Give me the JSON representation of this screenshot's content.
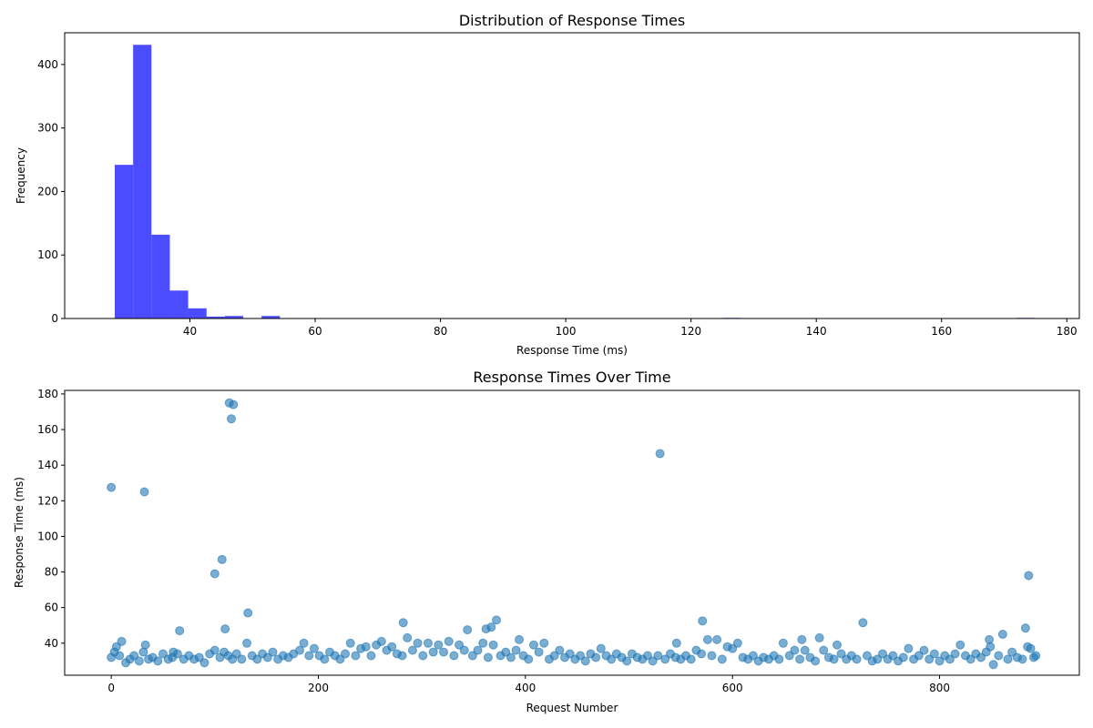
{
  "chart_data": [
    {
      "type": "bar",
      "title": "Distribution of Response Times",
      "xlabel": "Response Time (ms)",
      "ylabel": "Frequency",
      "xlim": [
        20,
        182
      ],
      "ylim": [
        0,
        450
      ],
      "xticks": [
        40,
        60,
        80,
        100,
        120,
        140,
        160,
        180
      ],
      "yticks": [
        0,
        100,
        200,
        300,
        400
      ],
      "grid": false,
      "color": "#0000ff",
      "bin_width": 2.93,
      "bins": [
        {
          "x0": 28.0,
          "x1": 30.93,
          "count": 242
        },
        {
          "x0": 30.93,
          "x1": 33.86,
          "count": 431
        },
        {
          "x0": 33.86,
          "x1": 36.79,
          "count": 132
        },
        {
          "x0": 36.79,
          "x1": 39.72,
          "count": 44
        },
        {
          "x0": 39.72,
          "x1": 42.65,
          "count": 16
        },
        {
          "x0": 42.65,
          "x1": 45.58,
          "count": 3
        },
        {
          "x0": 45.58,
          "x1": 48.51,
          "count": 4
        },
        {
          "x0": 48.51,
          "x1": 51.44,
          "count": 0
        },
        {
          "x0": 51.44,
          "x1": 54.37,
          "count": 4
        },
        {
          "x0": 125.0,
          "x1": 127.93,
          "count": 1
        },
        {
          "x0": 172.0,
          "x1": 174.93,
          "count": 1
        }
      ]
    },
    {
      "type": "scatter",
      "title": "Response Times Over Time",
      "xlabel": "Request Number",
      "ylabel": "Response Time (ms)",
      "xlim": [
        -45,
        935
      ],
      "ylim": [
        22,
        182
      ],
      "xticks": [
        0,
        200,
        400,
        600,
        800
      ],
      "yticks": [
        40,
        60,
        80,
        100,
        120,
        140,
        160,
        180
      ],
      "grid": false,
      "color": "#1f77b4",
      "points": [
        [
          0,
          127.5
        ],
        [
          32,
          125
        ],
        [
          100,
          79
        ],
        [
          107,
          87
        ],
        [
          110,
          48
        ],
        [
          114,
          175
        ],
        [
          116,
          166
        ],
        [
          118,
          174
        ],
        [
          132,
          57
        ],
        [
          131,
          40
        ],
        [
          66,
          47
        ],
        [
          10,
          41
        ],
        [
          5,
          38
        ],
        [
          33,
          39
        ],
        [
          60,
          35
        ],
        [
          282,
          51.5
        ],
        [
          286,
          43
        ],
        [
          344,
          47.5
        ],
        [
          362,
          48
        ],
        [
          367,
          49
        ],
        [
          372,
          53
        ],
        [
          394,
          42
        ],
        [
          231,
          40
        ],
        [
          530,
          146.5
        ],
        [
          571,
          52.5
        ],
        [
          576,
          42
        ],
        [
          585,
          42
        ],
        [
          546,
          40
        ],
        [
          605,
          40
        ],
        [
          649,
          40
        ],
        [
          667,
          42
        ],
        [
          684,
          43
        ],
        [
          701,
          39
        ],
        [
          726,
          51.5
        ],
        [
          848,
          42
        ],
        [
          861,
          45
        ],
        [
          883,
          48.5
        ],
        [
          886,
          78
        ],
        [
          849,
          38
        ],
        [
          885,
          38
        ],
        [
          0,
          32
        ],
        [
          3,
          35
        ],
        [
          8,
          33
        ],
        [
          14,
          29
        ],
        [
          18,
          31
        ],
        [
          22,
          33
        ],
        [
          27,
          30
        ],
        [
          31,
          35
        ],
        [
          36,
          31
        ],
        [
          40,
          32
        ],
        [
          45,
          30
        ],
        [
          50,
          34
        ],
        [
          55,
          31
        ],
        [
          59,
          32
        ],
        [
          64,
          34
        ],
        [
          70,
          31
        ],
        [
          75,
          33
        ],
        [
          80,
          31
        ],
        [
          85,
          32
        ],
        [
          90,
          29
        ],
        [
          95,
          34
        ],
        [
          100,
          36
        ],
        [
          105,
          32
        ],
        [
          109,
          35
        ],
        [
          113,
          33
        ],
        [
          117,
          31
        ],
        [
          121,
          34
        ],
        [
          126,
          31
        ],
        [
          136,
          33
        ],
        [
          141,
          31
        ],
        [
          146,
          34
        ],
        [
          151,
          32
        ],
        [
          156,
          35
        ],
        [
          161,
          31
        ],
        [
          166,
          33
        ],
        [
          171,
          32
        ],
        [
          176,
          34
        ],
        [
          182,
          36
        ],
        [
          186,
          40
        ],
        [
          191,
          33
        ],
        [
          196,
          37
        ],
        [
          201,
          33
        ],
        [
          206,
          31
        ],
        [
          211,
          35
        ],
        [
          216,
          33
        ],
        [
          221,
          31
        ],
        [
          226,
          34
        ],
        [
          236,
          33
        ],
        [
          241,
          37
        ],
        [
          246,
          38
        ],
        [
          251,
          33
        ],
        [
          256,
          39
        ],
        [
          261,
          41
        ],
        [
          266,
          36
        ],
        [
          271,
          38
        ],
        [
          276,
          34
        ],
        [
          281,
          33
        ],
        [
          291,
          36
        ],
        [
          296,
          40
        ],
        [
          301,
          33
        ],
        [
          306,
          40
        ],
        [
          311,
          35
        ],
        [
          316,
          39
        ],
        [
          321,
          35
        ],
        [
          326,
          41
        ],
        [
          331,
          33
        ],
        [
          336,
          39
        ],
        [
          341,
          36
        ],
        [
          349,
          33
        ],
        [
          354,
          36
        ],
        [
          359,
          40
        ],
        [
          364,
          32
        ],
        [
          369,
          39
        ],
        [
          376,
          33
        ],
        [
          381,
          35
        ],
        [
          386,
          32
        ],
        [
          391,
          36
        ],
        [
          398,
          33
        ],
        [
          403,
          31
        ],
        [
          408,
          39
        ],
        [
          413,
          35
        ],
        [
          418,
          40
        ],
        [
          423,
          31
        ],
        [
          428,
          33
        ],
        [
          433,
          36
        ],
        [
          438,
          32
        ],
        [
          443,
          34
        ],
        [
          448,
          31
        ],
        [
          453,
          33
        ],
        [
          458,
          30
        ],
        [
          463,
          34
        ],
        [
          468,
          32
        ],
        [
          473,
          37
        ],
        [
          478,
          33
        ],
        [
          483,
          31
        ],
        [
          488,
          34
        ],
        [
          493,
          32
        ],
        [
          498,
          30
        ],
        [
          503,
          34
        ],
        [
          508,
          32
        ],
        [
          513,
          31
        ],
        [
          518,
          33
        ],
        [
          523,
          30
        ],
        [
          528,
          33
        ],
        [
          535,
          31
        ],
        [
          540,
          34
        ],
        [
          545,
          32
        ],
        [
          550,
          31
        ],
        [
          555,
          33
        ],
        [
          560,
          31
        ],
        [
          565,
          36
        ],
        [
          570,
          34
        ],
        [
          580,
          33
        ],
        [
          590,
          31
        ],
        [
          595,
          38
        ],
        [
          600,
          37
        ],
        [
          610,
          32
        ],
        [
          615,
          31
        ],
        [
          620,
          33
        ],
        [
          625,
          30
        ],
        [
          630,
          32
        ],
        [
          635,
          31
        ],
        [
          640,
          33
        ],
        [
          645,
          31
        ],
        [
          655,
          33
        ],
        [
          660,
          36
        ],
        [
          665,
          31
        ],
        [
          670,
          36
        ],
        [
          675,
          32
        ],
        [
          680,
          30
        ],
        [
          688,
          36
        ],
        [
          693,
          32
        ],
        [
          698,
          31
        ],
        [
          705,
          34
        ],
        [
          710,
          31
        ],
        [
          715,
          33
        ],
        [
          720,
          31
        ],
        [
          730,
          33
        ],
        [
          735,
          30
        ],
        [
          740,
          31
        ],
        [
          745,
          34
        ],
        [
          750,
          31
        ],
        [
          755,
          33
        ],
        [
          760,
          30
        ],
        [
          765,
          32
        ],
        [
          770,
          37
        ],
        [
          775,
          31
        ],
        [
          780,
          33
        ],
        [
          785,
          36
        ],
        [
          790,
          31
        ],
        [
          795,
          34
        ],
        [
          800,
          30
        ],
        [
          805,
          33
        ],
        [
          810,
          31
        ],
        [
          815,
          34
        ],
        [
          820,
          39
        ],
        [
          825,
          33
        ],
        [
          830,
          31
        ],
        [
          835,
          34
        ],
        [
          840,
          32
        ],
        [
          845,
          35
        ],
        [
          852,
          28
        ],
        [
          857,
          33
        ],
        [
          866,
          31
        ],
        [
          870,
          35
        ],
        [
          875,
          32
        ],
        [
          880,
          31
        ],
        [
          888,
          37
        ],
        [
          891,
          32
        ],
        [
          893,
          33
        ]
      ]
    }
  ]
}
